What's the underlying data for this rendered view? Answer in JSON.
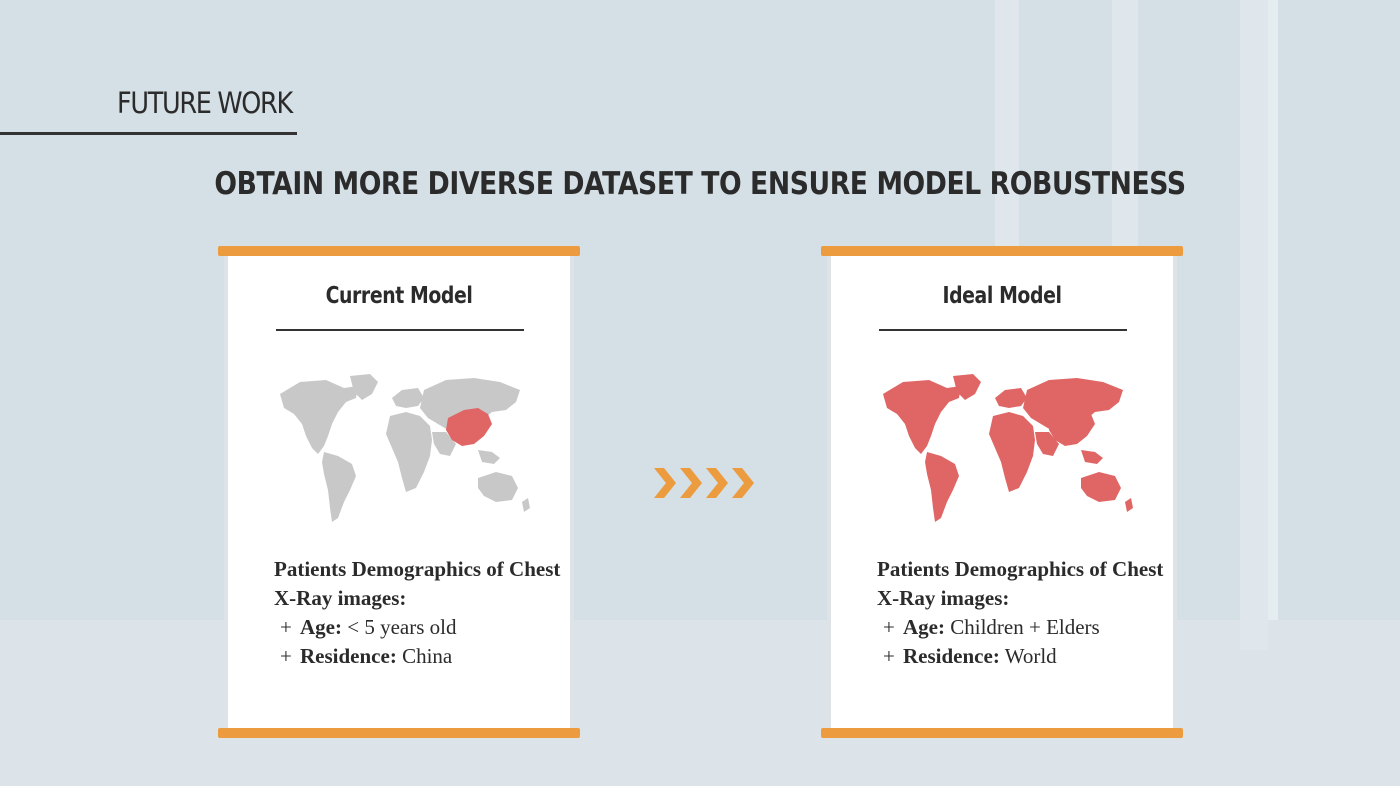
{
  "section": {
    "title": "FUTURE WORK"
  },
  "headline": "OBTAIN MORE DIVERSE DATASET TO ENSURE MODEL ROBUSTNESS",
  "colors": {
    "accent_orange": "#ec9b3e",
    "highlight_red": "#e06666",
    "map_grey": "#c8c8c8",
    "background": "#d4dfe6"
  },
  "cards": {
    "current": {
      "title": "Current Model",
      "map_icon": "world-map-china-highlighted-icon",
      "heading": "Patients Demographics of Chest X-Ray images:",
      "items": [
        {
          "label": "Age:",
          "value": "< 5 years old"
        },
        {
          "label": "Residence:",
          "value": "China"
        }
      ]
    },
    "ideal": {
      "title": "Ideal Model",
      "map_icon": "world-map-all-highlighted-icon",
      "heading": "Patients Demographics of Chest X-Ray images:",
      "items": [
        {
          "label": "Age:",
          "value": "Children + Elders"
        },
        {
          "label": "Residence:",
          "value": "World"
        }
      ]
    }
  },
  "bullet_symbol": "+",
  "transition_icon": "chevron-arrows-icon"
}
